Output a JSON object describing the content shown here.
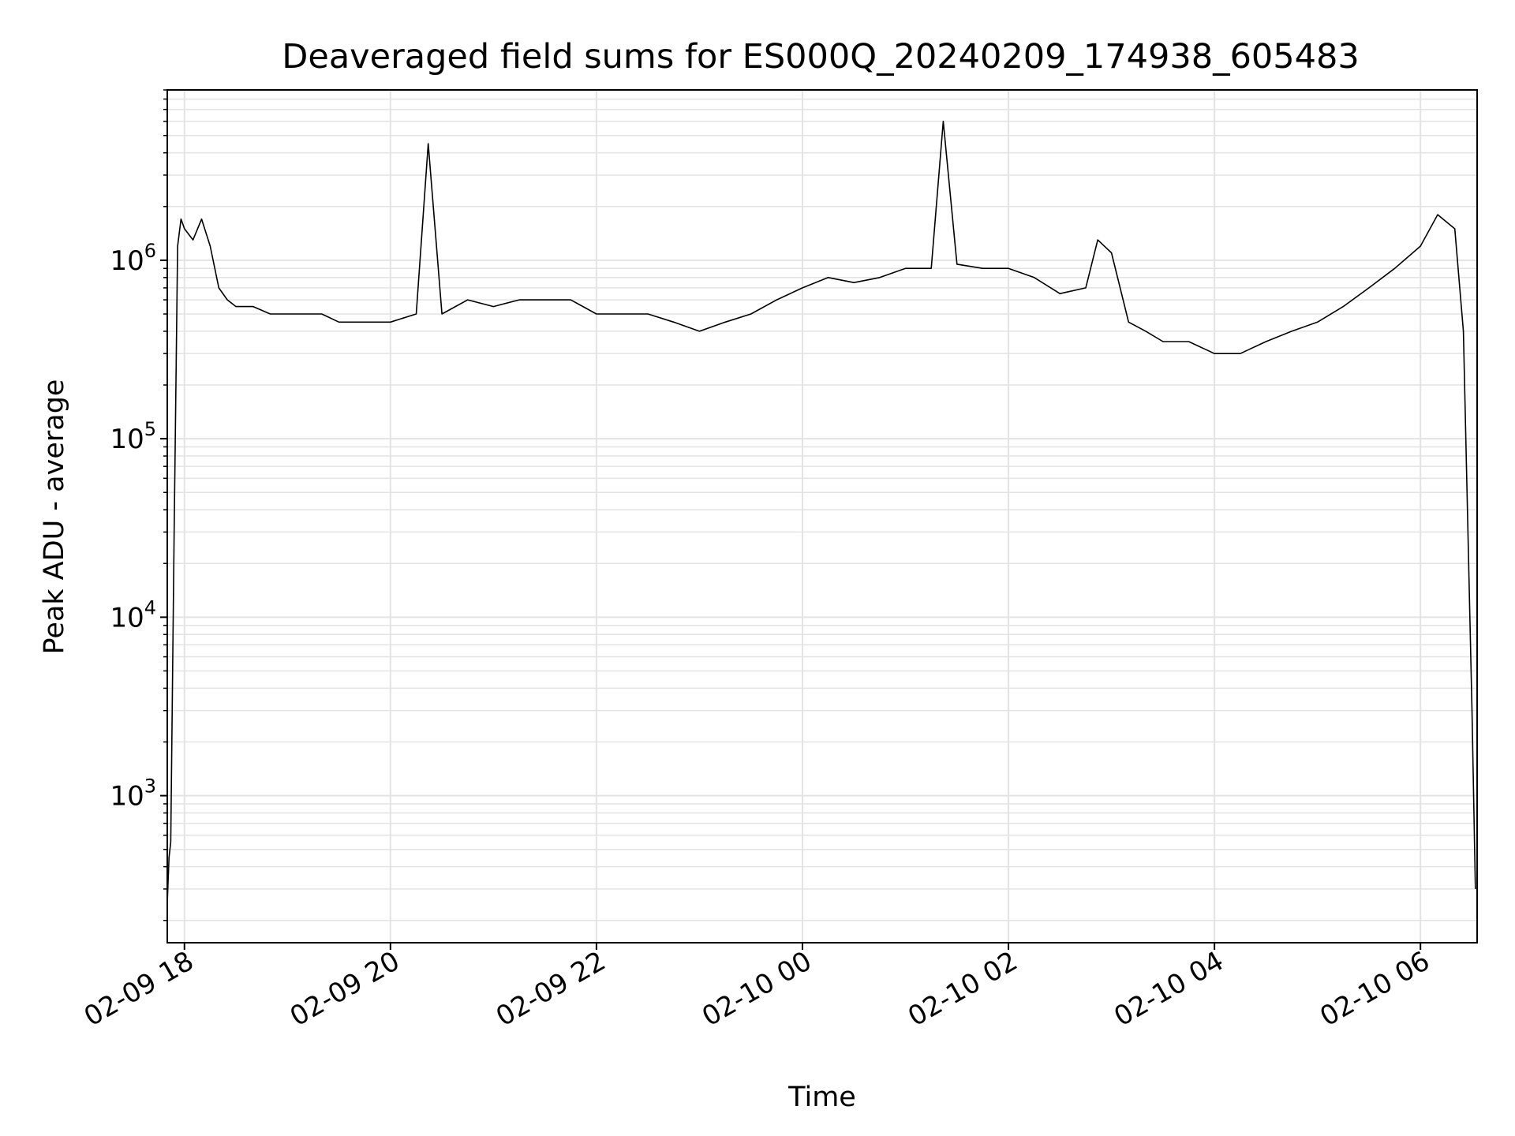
{
  "chart_data": {
    "type": "line",
    "title": "Deaveraged field sums for ES000Q_20240209_174938_605483",
    "xlabel": "Time",
    "ylabel": "Peak ADU - average",
    "yscale": "log",
    "ylim": [
      150,
      9000000
    ],
    "xlim": [
      "2024-02-09 17:50",
      "2024-02-10 06:33"
    ],
    "x_ticks": [
      {
        "t": "2024-02-09 18:00",
        "label": "02-09 18"
      },
      {
        "t": "2024-02-09 20:00",
        "label": "02-09 20"
      },
      {
        "t": "2024-02-09 22:00",
        "label": "02-09 22"
      },
      {
        "t": "2024-02-10 00:00",
        "label": "02-10 00"
      },
      {
        "t": "2024-02-10 02:00",
        "label": "02-10 02"
      },
      {
        "t": "2024-02-10 04:00",
        "label": "02-10 04"
      },
      {
        "t": "2024-02-10 06:00",
        "label": "02-10 06"
      }
    ],
    "y_ticks": [
      {
        "value": 1000,
        "base": "10",
        "exp": "3"
      },
      {
        "value": 10000,
        "base": "10",
        "exp": "4"
      },
      {
        "value": 100000,
        "base": "10",
        "exp": "5"
      },
      {
        "value": 1000000,
        "base": "10",
        "exp": "6"
      }
    ],
    "grid": true,
    "line_color": "#000000",
    "grid_color": "#e3e3e3",
    "series": [
      {
        "x": [
          "2024-02-09 17:50",
          "2024-02-09 17:51",
          "2024-02-09 17:52",
          "2024-02-09 17:54",
          "2024-02-09 17:56",
          "2024-02-09 17:58",
          "2024-02-09 18:00",
          "2024-02-09 18:05",
          "2024-02-09 18:10",
          "2024-02-09 18:15",
          "2024-02-09 18:20",
          "2024-02-09 18:25",
          "2024-02-09 18:30",
          "2024-02-09 18:40",
          "2024-02-09 18:50",
          "2024-02-09 19:00",
          "2024-02-09 19:10",
          "2024-02-09 19:20",
          "2024-02-09 19:30",
          "2024-02-09 19:40",
          "2024-02-09 19:50",
          "2024-02-09 20:00",
          "2024-02-09 20:15",
          "2024-02-09 20:22",
          "2024-02-09 20:30",
          "2024-02-09 20:45",
          "2024-02-09 21:00",
          "2024-02-09 21:15",
          "2024-02-09 21:30",
          "2024-02-09 21:45",
          "2024-02-09 22:00",
          "2024-02-09 22:15",
          "2024-02-09 22:30",
          "2024-02-09 22:45",
          "2024-02-09 23:00",
          "2024-02-09 23:15",
          "2024-02-09 23:30",
          "2024-02-09 23:45",
          "2024-02-10 00:00",
          "2024-02-10 00:15",
          "2024-02-10 00:30",
          "2024-02-10 00:45",
          "2024-02-10 01:00",
          "2024-02-10 01:15",
          "2024-02-10 01:22",
          "2024-02-10 01:30",
          "2024-02-10 01:45",
          "2024-02-10 02:00",
          "2024-02-10 02:15",
          "2024-02-10 02:30",
          "2024-02-10 02:45",
          "2024-02-10 02:52",
          "2024-02-10 03:00",
          "2024-02-10 03:10",
          "2024-02-10 03:20",
          "2024-02-10 03:30",
          "2024-02-10 03:45",
          "2024-02-10 04:00",
          "2024-02-10 04:15",
          "2024-02-10 04:30",
          "2024-02-10 04:45",
          "2024-02-10 05:00",
          "2024-02-10 05:15",
          "2024-02-10 05:30",
          "2024-02-10 05:45",
          "2024-02-10 06:00",
          "2024-02-10 06:10",
          "2024-02-10 06:20",
          "2024-02-10 06:25",
          "2024-02-10 06:30",
          "2024-02-10 06:32"
        ],
        "y": [
          250,
          450,
          550,
          30000,
          1200000,
          1700000,
          1500000,
          1300000,
          1700000,
          1200000,
          700000,
          600000,
          550000,
          550000,
          500000,
          500000,
          500000,
          500000,
          450000,
          450000,
          450000,
          450000,
          500000,
          4500000,
          500000,
          600000,
          550000,
          600000,
          600000,
          600000,
          500000,
          500000,
          500000,
          450000,
          400000,
          450000,
          500000,
          600000,
          700000,
          800000,
          750000,
          800000,
          900000,
          900000,
          6000000,
          950000,
          900000,
          900000,
          800000,
          650000,
          700000,
          1300000,
          1100000,
          450000,
          400000,
          350000,
          350000,
          300000,
          300000,
          350000,
          400000,
          450000,
          550000,
          700000,
          900000,
          1200000,
          1800000,
          1500000,
          400000,
          3000,
          300
        ]
      }
    ]
  }
}
